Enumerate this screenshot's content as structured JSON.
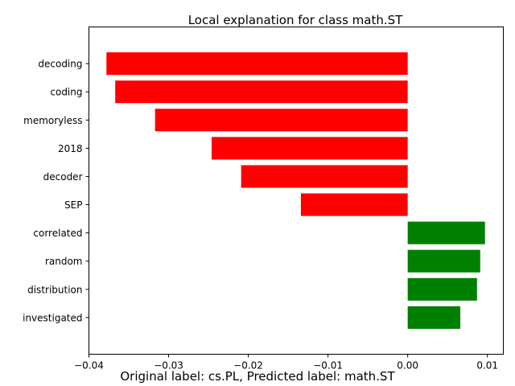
{
  "chart_data": {
    "type": "bar",
    "orientation": "horizontal",
    "title": "Local explanation for class math.ST",
    "xlabel": "",
    "ylabel": "",
    "categories": [
      "decoding",
      "coding",
      "memoryless",
      "2018",
      "decoder",
      "SEP",
      "correlated",
      "random",
      "distribution",
      "investigated"
    ],
    "values": [
      -0.0378,
      -0.0367,
      -0.0317,
      -0.0246,
      -0.0209,
      -0.0134,
      0.0097,
      0.0091,
      0.0087,
      0.0066
    ],
    "xlim": [
      -0.04,
      0.012
    ],
    "xticks": [
      -0.04,
      -0.03,
      -0.02,
      -0.01,
      0.0,
      0.01
    ],
    "xtick_labels": [
      "−0.04",
      "−0.03",
      "−0.02",
      "−0.01",
      "0.00",
      "0.01"
    ],
    "colors": {
      "negative": "#ff0000",
      "positive": "#008000"
    },
    "grid": false,
    "legend": "none"
  },
  "caption": "Original label: cs.PL, Predicted label: math.ST"
}
